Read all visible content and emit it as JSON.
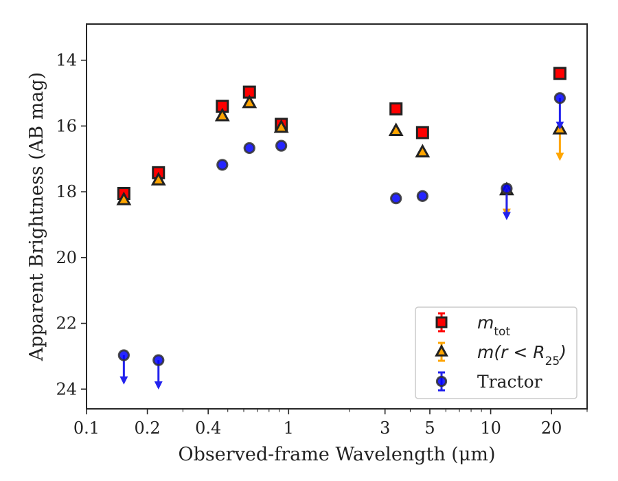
{
  "chart_data": {
    "type": "scatter",
    "xscale": "log",
    "xlim": [
      0.1,
      30
    ],
    "ylim": [
      24.6,
      12.9
    ],
    "y_inverted": true,
    "xlabel": "Observed-frame Wavelength (μm)",
    "ylabel": "Apparent Brightness (AB mag)",
    "xticks": [
      0.1,
      0.2,
      0.4,
      1,
      3,
      5,
      10,
      20
    ],
    "xtick_labels": [
      "0.1",
      "0.2",
      "0.4",
      "1",
      "3",
      "5",
      "10",
      "20"
    ],
    "yticks": [
      14,
      16,
      18,
      20,
      22,
      24
    ],
    "ytick_labels": [
      "14",
      "16",
      "18",
      "20",
      "22",
      "24"
    ],
    "legend_placement": "lower-right",
    "series": [
      {
        "name": "m_tot",
        "legend_label": {
          "base": "m",
          "sub": "tot"
        },
        "marker": "square",
        "color": "#ff0000",
        "points": [
          {
            "x": 0.153,
            "y": 18.05,
            "upper_limit": false
          },
          {
            "x": 0.227,
            "y": 17.42,
            "upper_limit": false
          },
          {
            "x": 0.47,
            "y": 15.4,
            "upper_limit": false
          },
          {
            "x": 0.64,
            "y": 14.97,
            "upper_limit": false
          },
          {
            "x": 0.92,
            "y": 15.95,
            "upper_limit": false
          },
          {
            "x": 3.4,
            "y": 15.48,
            "upper_limit": false
          },
          {
            "x": 4.6,
            "y": 16.2,
            "upper_limit": false
          },
          {
            "x": 22,
            "y": 14.4,
            "upper_limit": false
          }
        ]
      },
      {
        "name": "m(r<R_25)",
        "legend_label": {
          "base": "m(r < R",
          "sub": "25",
          "suffix": ")"
        },
        "marker": "triangle",
        "color": "#ffa500",
        "points": [
          {
            "x": 0.153,
            "y": 18.25,
            "upper_limit": false
          },
          {
            "x": 0.227,
            "y": 17.65,
            "upper_limit": false
          },
          {
            "x": 0.47,
            "y": 15.7,
            "upper_limit": false
          },
          {
            "x": 0.64,
            "y": 15.3,
            "upper_limit": false
          },
          {
            "x": 0.92,
            "y": 16.05,
            "upper_limit": false
          },
          {
            "x": 3.4,
            "y": 16.15,
            "upper_limit": false
          },
          {
            "x": 4.6,
            "y": 16.8,
            "upper_limit": false
          },
          {
            "x": 12,
            "y": 17.95,
            "upper_limit": true,
            "limit_to": 18.7
          },
          {
            "x": 22,
            "y": 16.1,
            "upper_limit": true,
            "limit_to": 17.0
          }
        ]
      },
      {
        "name": "Tractor",
        "legend_label": {
          "base": "Tractor"
        },
        "marker": "circle",
        "color": "#0000ff",
        "points": [
          {
            "x": 0.153,
            "y": 22.97,
            "upper_limit": true,
            "limit_to": 23.8
          },
          {
            "x": 0.227,
            "y": 23.12,
            "upper_limit": true,
            "limit_to": 23.95
          },
          {
            "x": 0.47,
            "y": 17.18,
            "upper_limit": false
          },
          {
            "x": 0.64,
            "y": 16.67,
            "upper_limit": false
          },
          {
            "x": 0.92,
            "y": 16.6,
            "upper_limit": false
          },
          {
            "x": 3.4,
            "y": 18.2,
            "upper_limit": false
          },
          {
            "x": 4.6,
            "y": 18.13,
            "upper_limit": false
          },
          {
            "x": 12,
            "y": 17.9,
            "upper_limit": true,
            "limit_to": 18.8
          },
          {
            "x": 22,
            "y": 15.15,
            "upper_limit": true,
            "limit_to": 16.05
          }
        ]
      }
    ]
  }
}
